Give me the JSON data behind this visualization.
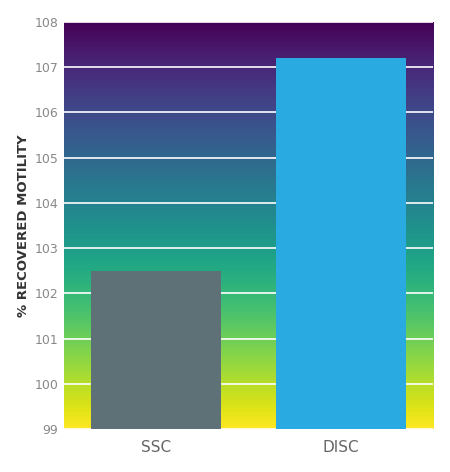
{
  "categories": [
    "SSC",
    "DISC"
  ],
  "values": [
    102.5,
    107.2
  ],
  "bar_colors": [
    "#5d7176",
    "#29abe2"
  ],
  "bar_width": 0.35,
  "ylabel": "% RECOVERED MOTILITY",
  "ylim": [
    99,
    108
  ],
  "yticks": [
    99,
    100,
    101,
    102,
    103,
    104,
    105,
    106,
    107,
    108
  ],
  "background_color": "#ffffff",
  "plot_bg_top": "#e8e8e8",
  "plot_bg_bottom": "#f8f8f8",
  "grid_color": "#ffffff",
  "tick_label_color": "#888888",
  "ylabel_color": "#333333",
  "xlabel_color": "#666666",
  "ylabel_fontsize": 9.5,
  "tick_fontsize": 9,
  "xlabel_fontsize": 11,
  "x_positions": [
    0.25,
    0.75
  ]
}
